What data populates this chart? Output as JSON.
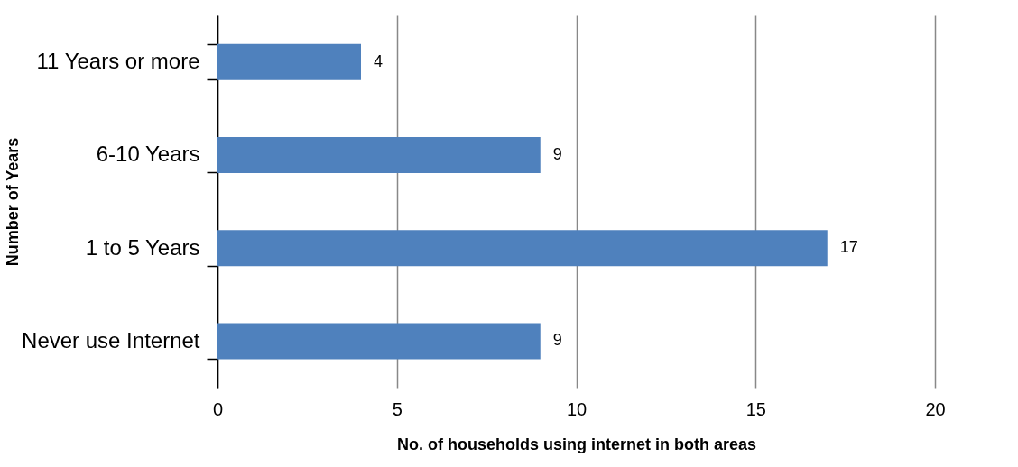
{
  "chart_data": {
    "type": "bar",
    "orientation": "horizontal",
    "categories": [
      "11 Years or more",
      "6-10 Years",
      "1 to 5 Years",
      "Never use Internet"
    ],
    "values": [
      4,
      9,
      17,
      9
    ],
    "color": "#4f81bd",
    "xlabel": "No. of households using internet in both areas",
    "ylabel": "Number of Years",
    "xlim": [
      0,
      20
    ],
    "xticks": [
      0,
      5,
      10,
      15,
      20
    ],
    "grid": "x",
    "data_labels": true
  }
}
